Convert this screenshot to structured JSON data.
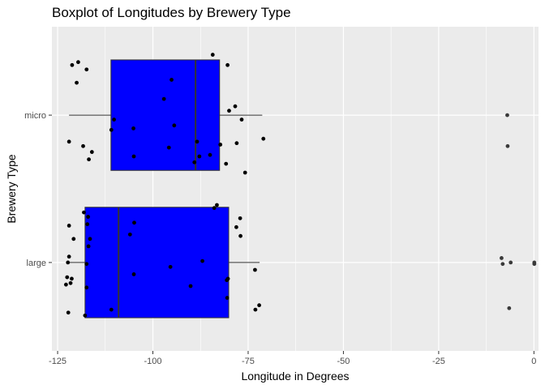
{
  "chart_data": {
    "type": "boxplot",
    "title": "Boxplot of Longitudes by Brewery Type",
    "xlabel": "Longitude in Degrees",
    "ylabel": "Brewery Type",
    "xlim": [
      -126.5,
      1.2
    ],
    "x_ticks": [
      -125,
      -100,
      -75,
      -50,
      -25,
      0
    ],
    "x_tick_labels": [
      "-125",
      "-100",
      "-75",
      "-50",
      "-25",
      "0"
    ],
    "categories": [
      "large",
      "micro"
    ],
    "grid": true,
    "box_fill": "#0000ff",
    "panel_background": "#ebebeb",
    "boxes": [
      {
        "category": "micro",
        "whisker_low": -122.0,
        "q1": -111.0,
        "median": -88.8,
        "q3": -82.5,
        "whisker_high": -71.3
      },
      {
        "category": "large",
        "whisker_low": -122.0,
        "q1": -117.8,
        "median": -109.0,
        "q3": -80.1,
        "whisker_high": -72.0
      }
    ],
    "points": [
      {
        "category": "micro",
        "x": -119.6,
        "y": 0.36
      },
      {
        "category": "micro",
        "x": -121.2,
        "y": 0.34
      },
      {
        "category": "micro",
        "x": -117.4,
        "y": 0.31
      },
      {
        "category": "micro",
        "x": -120.0,
        "y": 0.22
      },
      {
        "category": "micro",
        "x": -84.3,
        "y": 0.41
      },
      {
        "category": "micro",
        "x": -80.4,
        "y": 0.34
      },
      {
        "category": "micro",
        "x": -95.1,
        "y": 0.24
      },
      {
        "category": "micro",
        "x": -97.1,
        "y": 0.11
      },
      {
        "category": "micro",
        "x": -78.4,
        "y": 0.06
      },
      {
        "category": "micro",
        "x": -80.0,
        "y": 0.03
      },
      {
        "category": "micro",
        "x": -76.7,
        "y": -0.03
      },
      {
        "category": "micro",
        "x": -94.4,
        "y": -0.07
      },
      {
        "category": "micro",
        "x": -105.1,
        "y": -0.09
      },
      {
        "category": "micro",
        "x": -110.9,
        "y": -0.1
      },
      {
        "category": "micro",
        "x": -110.2,
        "y": -0.03
      },
      {
        "category": "micro",
        "x": -71.0,
        "y": -0.16
      },
      {
        "category": "micro",
        "x": -78.0,
        "y": -0.19
      },
      {
        "category": "micro",
        "x": -122.0,
        "y": -0.18
      },
      {
        "category": "micro",
        "x": -118.3,
        "y": -0.21
      },
      {
        "category": "micro",
        "x": -116.0,
        "y": -0.25
      },
      {
        "category": "micro",
        "x": -116.8,
        "y": -0.3
      },
      {
        "category": "micro",
        "x": -95.8,
        "y": -0.22
      },
      {
        "category": "micro",
        "x": -88.4,
        "y": -0.18
      },
      {
        "category": "micro",
        "x": -85.0,
        "y": -0.27
      },
      {
        "category": "micro",
        "x": -82.3,
        "y": -0.2
      },
      {
        "category": "micro",
        "x": -87.8,
        "y": -0.28
      },
      {
        "category": "micro",
        "x": -89.1,
        "y": -0.32
      },
      {
        "category": "micro",
        "x": -80.8,
        "y": -0.33
      },
      {
        "category": "micro",
        "x": -105.0,
        "y": -0.28
      },
      {
        "category": "micro",
        "x": -75.8,
        "y": -0.39
      },
      {
        "category": "micro",
        "x": -7.0,
        "y": 0.0
      },
      {
        "category": "micro",
        "x": -6.9,
        "y": -0.21
      },
      {
        "category": "large",
        "x": -83.2,
        "y": 0.39
      },
      {
        "category": "large",
        "x": -83.9,
        "y": 0.37
      },
      {
        "category": "large",
        "x": -77.1,
        "y": 0.3
      },
      {
        "category": "large",
        "x": -78.1,
        "y": 0.24
      },
      {
        "category": "large",
        "x": -77.0,
        "y": 0.18
      },
      {
        "category": "large",
        "x": -104.9,
        "y": 0.27
      },
      {
        "category": "large",
        "x": -106.0,
        "y": 0.19
      },
      {
        "category": "large",
        "x": -118.1,
        "y": 0.34
      },
      {
        "category": "large",
        "x": -117.0,
        "y": 0.31
      },
      {
        "category": "large",
        "x": -122.0,
        "y": 0.25
      },
      {
        "category": "large",
        "x": -117.2,
        "y": 0.26
      },
      {
        "category": "large",
        "x": -116.5,
        "y": 0.16
      },
      {
        "category": "large",
        "x": -120.8,
        "y": 0.16
      },
      {
        "category": "large",
        "x": -116.9,
        "y": 0.11
      },
      {
        "category": "large",
        "x": -122.0,
        "y": 0.04
      },
      {
        "category": "large",
        "x": -122.3,
        "y": 0.0
      },
      {
        "category": "large",
        "x": -117.4,
        "y": -0.01
      },
      {
        "category": "large",
        "x": -122.5,
        "y": -0.1
      },
      {
        "category": "large",
        "x": -121.3,
        "y": -0.11
      },
      {
        "category": "large",
        "x": -121.6,
        "y": -0.14
      },
      {
        "category": "large",
        "x": -122.8,
        "y": -0.15
      },
      {
        "category": "large",
        "x": -117.4,
        "y": -0.17
      },
      {
        "category": "large",
        "x": -122.2,
        "y": -0.34
      },
      {
        "category": "large",
        "x": -110.9,
        "y": -0.32
      },
      {
        "category": "large",
        "x": -117.8,
        "y": -0.36
      },
      {
        "category": "large",
        "x": -87.0,
        "y": 0.01
      },
      {
        "category": "large",
        "x": -95.4,
        "y": -0.03
      },
      {
        "category": "large",
        "x": -105.0,
        "y": -0.08
      },
      {
        "category": "large",
        "x": -90.1,
        "y": -0.16
      },
      {
        "category": "large",
        "x": -80.3,
        "y": -0.11
      },
      {
        "category": "large",
        "x": -80.6,
        "y": -0.12
      },
      {
        "category": "large",
        "x": -80.5,
        "y": -0.24
      },
      {
        "category": "large",
        "x": -73.2,
        "y": -0.05
      },
      {
        "category": "large",
        "x": -73.1,
        "y": -0.32
      },
      {
        "category": "large",
        "x": -72.1,
        "y": -0.29
      },
      {
        "category": "large",
        "x": -8.5,
        "y": 0.03
      },
      {
        "category": "large",
        "x": -8.2,
        "y": -0.01
      },
      {
        "category": "large",
        "x": -6.1,
        "y": 0.0
      },
      {
        "category": "large",
        "x": 0.1,
        "y": 0.0
      },
      {
        "category": "large",
        "x": 0.1,
        "y": -0.01
      },
      {
        "category": "large",
        "x": -6.5,
        "y": -0.31
      }
    ]
  }
}
